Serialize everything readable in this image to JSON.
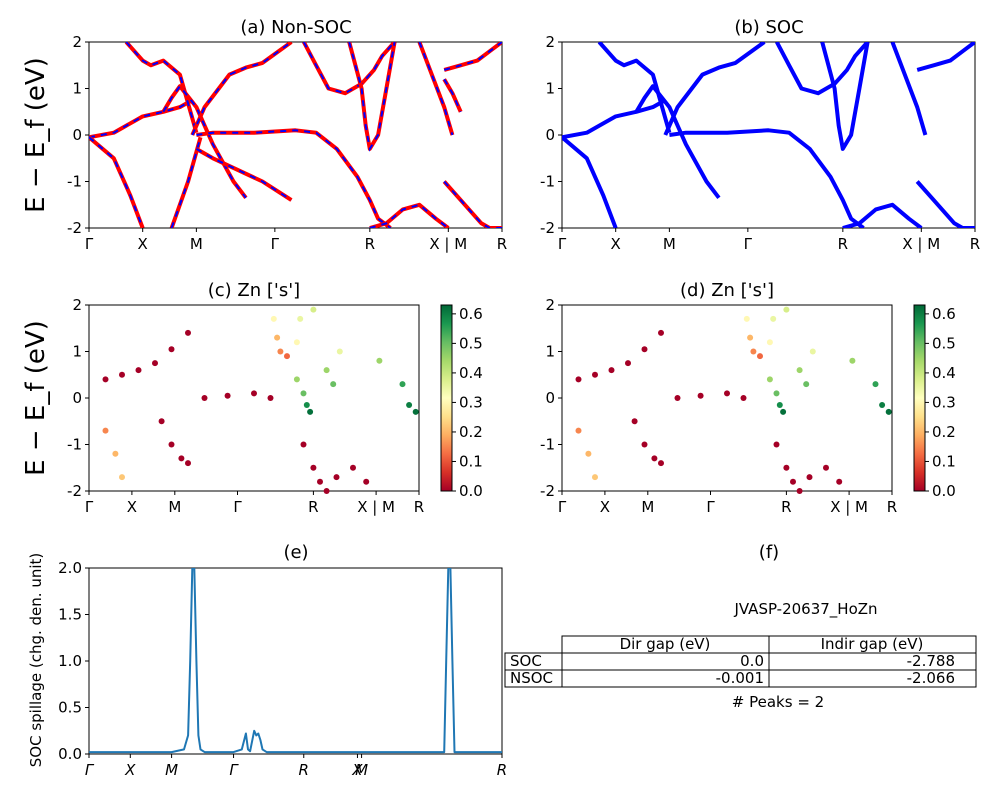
{
  "panels": {
    "a": {
      "title": "(a) Non-SOC"
    },
    "b": {
      "title": "(b) SOC"
    },
    "c": {
      "title": "(c)  Zn ['s']"
    },
    "d": {
      "title": "(d) Zn ['s']"
    },
    "e": {
      "title": "(e)"
    },
    "f": {
      "title": "(f)"
    }
  },
  "band_ylabel": "E − E_f (eV)",
  "band_kpath": [
    "Γ",
    "X",
    "M",
    "Γ",
    "R",
    "X | M",
    "R"
  ],
  "spillage_kpath": [
    "Γ",
    "X",
    "M",
    "Γ",
    "R",
    "X",
    "M",
    "R"
  ],
  "spillage_ylabel": "SOC spillage (chg. den. unit)",
  "colorbar_ticks": [
    "0.0",
    "0.1",
    "0.2",
    "0.3",
    "0.4",
    "0.5",
    "0.6"
  ],
  "colors": {
    "nonsoc_line": "#ff0000",
    "nonsoc_dash": "#0000ff",
    "soc_line": "#0000ff",
    "spillage_line": "#1f77b4"
  },
  "summary": {
    "material": "JVASP-20637_HoZn",
    "columns": [
      "Dir gap (eV)",
      "Indir gap (eV)"
    ],
    "rows": [
      {
        "label": "SOC",
        "dir": "0.0",
        "indir": "-2.788"
      },
      {
        "label": "NSOC",
        "dir": "-0.001",
        "indir": "-2.066"
      }
    ],
    "peaks": "# Peaks = 2"
  },
  "chart_data": [
    {
      "id": "a",
      "type": "line",
      "title": "(a) Non-SOC",
      "xlabel": "",
      "ylabel": "E − E_f (eV)",
      "ylim": [
        -2,
        2
      ],
      "yticks": [
        -2,
        -1,
        0,
        1,
        2
      ],
      "xticks": [
        "Γ",
        "X",
        "M",
        "Γ",
        "R",
        "X | M",
        "R"
      ],
      "series": [
        {
          "x": [
            0,
            0.06,
            0.13,
            0.18,
            0.22,
            0.25
          ],
          "y": [
            -0.05,
            0.05,
            0.4,
            0.5,
            0.6,
            0.75
          ]
        },
        {
          "x": [
            0,
            0.06,
            0.1,
            0.13
          ],
          "y": [
            -0.05,
            -0.5,
            -1.3,
            -2.0
          ]
        },
        {
          "x": [
            0.09,
            0.13,
            0.15,
            0.18,
            0.22,
            0.26
          ],
          "y": [
            2.0,
            1.6,
            1.5,
            1.6,
            1.3,
            0.05
          ]
        },
        {
          "x": [
            0.18,
            0.2,
            0.22,
            0.26,
            0.3,
            0.35,
            0.38
          ],
          "y": [
            0.5,
            0.8,
            1.05,
            0.6,
            -0.2,
            -1.0,
            -1.35
          ]
        },
        {
          "x": [
            0.2,
            0.24,
            0.27
          ],
          "y": [
            -2.0,
            -1.0,
            -0.05
          ]
        },
        {
          "x": [
            0.25,
            0.28,
            0.34,
            0.38,
            0.42,
            0.49
          ],
          "y": [
            0.0,
            0.6,
            1.3,
            1.45,
            1.55,
            2.0
          ]
        },
        {
          "x": [
            0.26,
            0.3,
            0.4,
            0.5,
            0.55,
            0.6,
            0.65,
            0.68,
            0.7,
            0.73
          ],
          "y": [
            0.0,
            0.05,
            0.05,
            0.1,
            0.05,
            -0.3,
            -0.9,
            -1.4,
            -1.8,
            -2.0
          ]
        },
        {
          "x": [
            0.26,
            0.3,
            0.42,
            0.49
          ],
          "y": [
            -0.3,
            -0.5,
            -1.0,
            -1.4
          ]
        },
        {
          "x": [
            0.52,
            0.55,
            0.58,
            0.62,
            0.66,
            0.69,
            0.71,
            0.74
          ],
          "y": [
            2.0,
            1.5,
            1.0,
            0.9,
            1.1,
            1.4,
            1.7,
            2.0
          ]
        },
        {
          "x": [
            0.63,
            0.66,
            0.67,
            0.68,
            0.7,
            0.72,
            0.74
          ],
          "y": [
            2.0,
            1.0,
            0.2,
            -0.3,
            0.0,
            1.0,
            2.0
          ]
        },
        {
          "x": [
            0.68,
            0.72,
            0.76,
            0.8,
            0.84,
            0.87
          ],
          "y": [
            -2.0,
            -1.9,
            -1.6,
            -1.5,
            -1.8,
            -2.0
          ]
        },
        {
          "x": [
            0.8,
            0.83,
            0.86,
            0.88
          ],
          "y": [
            2.0,
            1.3,
            0.6,
            0.0
          ]
        },
        {
          "x": [
            0.86,
            0.9,
            0.94,
            0.97,
            1.0
          ],
          "y": [
            1.4,
            1.5,
            1.6,
            1.8,
            2.0
          ]
        },
        {
          "x": [
            0.86,
            0.9,
            0.93,
            0.95,
            0.97,
            1.0
          ],
          "y": [
            -1.0,
            -1.4,
            -1.7,
            -1.9,
            -2.0,
            -2.0
          ]
        },
        {
          "x": [
            0.86,
            0.88,
            0.9
          ],
          "y": [
            1.2,
            0.9,
            0.5
          ]
        }
      ]
    },
    {
      "id": "b",
      "type": "line",
      "title": "(b) SOC",
      "xlabel": "",
      "ylabel": "",
      "ylim": [
        -2,
        2
      ],
      "yticks": [
        -2,
        -1,
        0,
        1,
        2
      ],
      "xticks": [
        "Γ",
        "X",
        "M",
        "Γ",
        "R",
        "X | M",
        "R"
      ],
      "series": [
        {
          "x": [
            0,
            0.06,
            0.13,
            0.18,
            0.22,
            0.25
          ],
          "y": [
            -0.05,
            0.05,
            0.4,
            0.5,
            0.6,
            0.75
          ]
        },
        {
          "x": [
            0,
            0.06,
            0.1,
            0.13
          ],
          "y": [
            -0.05,
            -0.5,
            -1.3,
            -2.0
          ]
        },
        {
          "x": [
            0.09,
            0.13,
            0.15,
            0.18,
            0.22,
            0.26
          ],
          "y": [
            2.0,
            1.6,
            1.5,
            1.6,
            1.3,
            0.05
          ]
        },
        {
          "x": [
            0.18,
            0.2,
            0.22,
            0.26,
            0.3,
            0.35,
            0.38
          ],
          "y": [
            0.5,
            0.8,
            1.05,
            0.6,
            -0.2,
            -1.0,
            -1.35
          ]
        },
        {
          "x": [
            0.25,
            0.28,
            0.34,
            0.38,
            0.42,
            0.49
          ],
          "y": [
            0.0,
            0.6,
            1.3,
            1.45,
            1.55,
            2.0
          ]
        },
        {
          "x": [
            0.26,
            0.3,
            0.4,
            0.5,
            0.55,
            0.6,
            0.65,
            0.68,
            0.7,
            0.73
          ],
          "y": [
            0.0,
            0.05,
            0.05,
            0.1,
            0.05,
            -0.3,
            -0.9,
            -1.4,
            -1.8,
            -2.0
          ]
        },
        {
          "x": [
            0.52,
            0.55,
            0.58,
            0.62,
            0.66,
            0.69,
            0.71,
            0.74
          ],
          "y": [
            2.0,
            1.5,
            1.0,
            0.9,
            1.1,
            1.4,
            1.7,
            2.0
          ]
        },
        {
          "x": [
            0.63,
            0.66,
            0.67,
            0.68,
            0.7,
            0.72,
            0.74
          ],
          "y": [
            2.0,
            1.0,
            0.2,
            -0.3,
            0.0,
            1.0,
            2.0
          ]
        },
        {
          "x": [
            0.68,
            0.72,
            0.76,
            0.8,
            0.84,
            0.87
          ],
          "y": [
            -2.0,
            -1.9,
            -1.6,
            -1.5,
            -1.8,
            -2.0
          ]
        },
        {
          "x": [
            0.8,
            0.83,
            0.86,
            0.88
          ],
          "y": [
            2.0,
            1.3,
            0.6,
            0.0
          ]
        },
        {
          "x": [
            0.86,
            0.9,
            0.94,
            0.97,
            1.0
          ],
          "y": [
            1.4,
            1.5,
            1.6,
            1.8,
            2.0
          ]
        },
        {
          "x": [
            0.86,
            0.9,
            0.93,
            0.95,
            0.97,
            1.0
          ],
          "y": [
            -1.0,
            -1.4,
            -1.7,
            -1.9,
            -2.0,
            -2.0
          ]
        }
      ]
    },
    {
      "id": "c",
      "type": "scatter",
      "title": "(c)  Zn ['s']",
      "xlabel": "",
      "ylabel": "E − E_f (eV)",
      "ylim": [
        -2,
        2
      ],
      "clim": [
        0,
        0.63
      ],
      "xticks": [
        "Γ",
        "X",
        "M",
        "Γ",
        "R",
        "X | M",
        "R"
      ],
      "points": [
        [
          0.05,
          0.4,
          0.0
        ],
        [
          0.1,
          0.5,
          0.0
        ],
        [
          0.15,
          0.6,
          0.0
        ],
        [
          0.2,
          0.75,
          0.0
        ],
        [
          0.25,
          1.05,
          0.0
        ],
        [
          0.3,
          1.4,
          0.0
        ],
        [
          0.05,
          -0.7,
          0.15
        ],
        [
          0.08,
          -1.2,
          0.2
        ],
        [
          0.1,
          -1.7,
          0.22
        ],
        [
          0.35,
          0.0,
          0.0
        ],
        [
          0.42,
          0.05,
          0.0
        ],
        [
          0.5,
          0.1,
          0.0
        ],
        [
          0.55,
          0.0,
          0.0
        ],
        [
          0.56,
          1.7,
          0.3
        ],
        [
          0.57,
          1.3,
          0.2
        ],
        [
          0.58,
          1.0,
          0.15
        ],
        [
          0.6,
          0.9,
          0.12
        ],
        [
          0.63,
          1.2,
          0.3
        ],
        [
          0.64,
          1.7,
          0.35
        ],
        [
          0.68,
          1.9,
          0.38
        ],
        [
          0.63,
          0.4,
          0.45
        ],
        [
          0.65,
          0.1,
          0.5
        ],
        [
          0.66,
          -0.15,
          0.58
        ],
        [
          0.67,
          -0.3,
          0.62
        ],
        [
          0.72,
          0.6,
          0.45
        ],
        [
          0.74,
          0.3,
          0.5
        ],
        [
          0.76,
          1.0,
          0.35
        ],
        [
          0.88,
          0.8,
          0.45
        ],
        [
          0.95,
          0.3,
          0.55
        ],
        [
          0.97,
          -0.15,
          0.6
        ],
        [
          0.99,
          -0.3,
          0.62
        ],
        [
          0.65,
          -1.0,
          0.0
        ],
        [
          0.68,
          -1.5,
          0.0
        ],
        [
          0.7,
          -1.8,
          0.0
        ],
        [
          0.72,
          -2.0,
          0.0
        ],
        [
          0.75,
          -1.7,
          0.0
        ],
        [
          0.8,
          -1.5,
          0.0
        ],
        [
          0.84,
          -1.8,
          0.0
        ],
        [
          0.22,
          -0.5,
          0.0
        ],
        [
          0.25,
          -1.0,
          0.0
        ],
        [
          0.28,
          -1.3,
          0.0
        ],
        [
          0.3,
          -1.4,
          0.0
        ]
      ]
    },
    {
      "id": "d",
      "type": "scatter",
      "title": "(d) Zn ['s']",
      "xlabel": "",
      "ylabel": "",
      "ylim": [
        -2,
        2
      ],
      "clim": [
        0,
        0.63
      ],
      "xticks": [
        "Γ",
        "X",
        "M",
        "Γ",
        "R",
        "X | M",
        "R"
      ],
      "points": [
        [
          0.05,
          0.4,
          0.0
        ],
        [
          0.1,
          0.5,
          0.0
        ],
        [
          0.15,
          0.6,
          0.0
        ],
        [
          0.2,
          0.75,
          0.0
        ],
        [
          0.25,
          1.05,
          0.0
        ],
        [
          0.3,
          1.4,
          0.0
        ],
        [
          0.05,
          -0.7,
          0.15
        ],
        [
          0.08,
          -1.2,
          0.2
        ],
        [
          0.1,
          -1.7,
          0.22
        ],
        [
          0.35,
          0.0,
          0.0
        ],
        [
          0.42,
          0.05,
          0.0
        ],
        [
          0.5,
          0.1,
          0.0
        ],
        [
          0.55,
          0.0,
          0.0
        ],
        [
          0.56,
          1.7,
          0.3
        ],
        [
          0.57,
          1.3,
          0.2
        ],
        [
          0.58,
          1.0,
          0.15
        ],
        [
          0.6,
          0.9,
          0.12
        ],
        [
          0.63,
          1.2,
          0.3
        ],
        [
          0.64,
          1.7,
          0.35
        ],
        [
          0.68,
          1.9,
          0.38
        ],
        [
          0.63,
          0.4,
          0.45
        ],
        [
          0.65,
          0.1,
          0.5
        ],
        [
          0.66,
          -0.15,
          0.58
        ],
        [
          0.67,
          -0.3,
          0.62
        ],
        [
          0.72,
          0.6,
          0.45
        ],
        [
          0.74,
          0.3,
          0.5
        ],
        [
          0.76,
          1.0,
          0.35
        ],
        [
          0.88,
          0.8,
          0.45
        ],
        [
          0.95,
          0.3,
          0.55
        ],
        [
          0.97,
          -0.15,
          0.6
        ],
        [
          0.99,
          -0.3,
          0.62
        ],
        [
          0.65,
          -1.0,
          0.0
        ],
        [
          0.68,
          -1.5,
          0.0
        ],
        [
          0.7,
          -1.8,
          0.0
        ],
        [
          0.72,
          -2.0,
          0.0
        ],
        [
          0.75,
          -1.7,
          0.0
        ],
        [
          0.8,
          -1.5,
          0.0
        ],
        [
          0.84,
          -1.8,
          0.0
        ],
        [
          0.22,
          -0.5,
          0.0
        ],
        [
          0.25,
          -1.0,
          0.0
        ],
        [
          0.28,
          -1.3,
          0.0
        ],
        [
          0.3,
          -1.4,
          0.0
        ]
      ]
    },
    {
      "id": "e",
      "type": "line",
      "title": "(e)",
      "xlabel": "",
      "ylabel": "SOC spillage (chg. den. unit)",
      "ylim": [
        0,
        2.0
      ],
      "yticks": [
        0.0,
        0.5,
        1.0,
        1.5,
        2.0
      ],
      "xticks": [
        "Γ",
        "X",
        "M",
        "Γ",
        "R",
        "X",
        "M",
        "R"
      ],
      "series": [
        {
          "x": [
            0,
            0.1,
            0.2,
            0.23,
            0.24,
            0.245,
            0.25,
            0.255,
            0.26,
            0.265,
            0.27,
            0.28,
            0.3,
            0.35,
            0.37,
            0.38,
            0.385,
            0.39,
            0.4,
            0.405,
            0.41,
            0.415,
            0.42,
            0.43,
            0.45,
            0.6,
            0.8,
            0.86,
            0.865,
            0.87,
            0.875,
            0.88,
            0.885,
            0.89,
            0.9,
            1.0
          ],
          "y": [
            0.02,
            0.02,
            0.02,
            0.05,
            0.2,
            1.0,
            2.0,
            2.0,
            1.0,
            0.2,
            0.05,
            0.02,
            0.02,
            0.02,
            0.05,
            0.22,
            0.05,
            0.03,
            0.25,
            0.2,
            0.22,
            0.15,
            0.05,
            0.02,
            0.02,
            0.02,
            0.02,
            0.02,
            1.0,
            2.0,
            2.0,
            1.0,
            0.02,
            0.02,
            0.02,
            0.02
          ]
        }
      ]
    }
  ]
}
